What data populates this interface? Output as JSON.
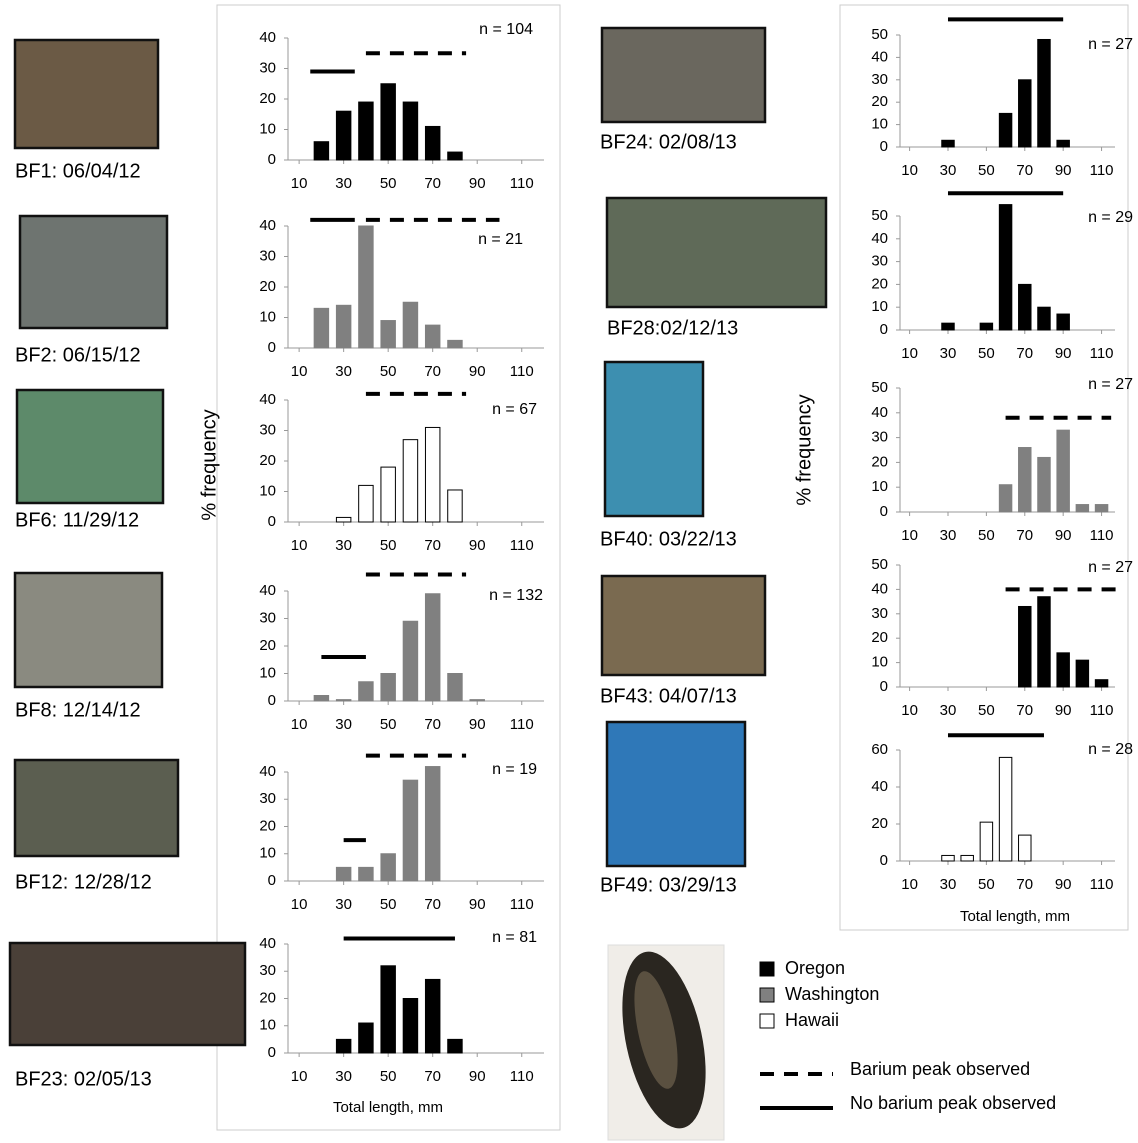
{
  "chart_data": [
    {
      "type": "bar",
      "caption": "BF1: 06/04/12",
      "annotation": "n = 104",
      "x": [
        20,
        30,
        40,
        50,
        60,
        70,
        80
      ],
      "values": [
        6,
        16,
        19,
        25,
        19,
        11,
        2.6
      ],
      "color": "#000000",
      "edgecolor": "#000000",
      "xlim": [
        5,
        120
      ],
      "xticks": [
        10,
        30,
        50,
        70,
        90,
        110
      ],
      "ylim": [
        0,
        40
      ],
      "yticks": [
        0,
        10,
        20,
        30,
        40
      ],
      "ranges": [
        {
          "style": "solid",
          "x": [
            15,
            35
          ],
          "y": 29
        },
        {
          "style": "dashed",
          "x": [
            40,
            85
          ],
          "y": 35
        }
      ]
    },
    {
      "type": "bar",
      "caption": "BF2: 06/15/12",
      "annotation": "n = 21",
      "x": [
        20,
        30,
        40,
        50,
        60,
        70,
        80
      ],
      "values": [
        13,
        14,
        40,
        9,
        15,
        7.5,
        2.5
      ],
      "color": "#808080",
      "edgecolor": "#808080",
      "xlim": [
        5,
        120
      ],
      "xticks": [
        10,
        30,
        50,
        70,
        90,
        110
      ],
      "ylim": [
        0,
        40
      ],
      "yticks": [
        0,
        10,
        20,
        30,
        40
      ],
      "ranges": [
        {
          "style": "solid",
          "x": [
            15,
            35
          ],
          "y": 42
        },
        {
          "style": "dashed",
          "x": [
            40,
            100
          ],
          "y": 42
        }
      ]
    },
    {
      "type": "bar",
      "caption": "BF6: 11/29/12",
      "annotation": "n = 67",
      "ylabel": "% frequency",
      "x": [
        30,
        40,
        50,
        60,
        70,
        80
      ],
      "values": [
        1.5,
        12,
        18,
        27,
        31,
        10.5
      ],
      "color": "#ffffff",
      "edgecolor": "#000000",
      "xlim": [
        5,
        120
      ],
      "xticks": [
        10,
        30,
        50,
        70,
        90,
        110
      ],
      "ylim": [
        0,
        40
      ],
      "yticks": [
        0,
        10,
        20,
        30,
        40
      ],
      "ranges": [
        {
          "style": "dashed",
          "x": [
            40,
            85
          ],
          "y": 42
        }
      ]
    },
    {
      "type": "bar",
      "caption": "BF8: 12/14/12",
      "annotation": "n = 132",
      "x": [
        20,
        30,
        40,
        50,
        60,
        70,
        80,
        90
      ],
      "values": [
        2,
        0.5,
        7,
        10,
        29,
        39,
        10,
        0.5
      ],
      "color": "#808080",
      "edgecolor": "#808080",
      "xlim": [
        5,
        120
      ],
      "xticks": [
        10,
        30,
        50,
        70,
        90,
        110
      ],
      "ylim": [
        0,
        40
      ],
      "yticks": [
        0,
        10,
        20,
        30,
        40
      ],
      "ranges": [
        {
          "style": "solid",
          "x": [
            20,
            40
          ],
          "y": 16
        },
        {
          "style": "dashed",
          "x": [
            40,
            85
          ],
          "y": 46
        }
      ]
    },
    {
      "type": "bar",
      "caption": "BF12: 12/28/12",
      "annotation": "n = 19",
      "x": [
        30,
        40,
        50,
        60,
        70
      ],
      "values": [
        5,
        5,
        10,
        37,
        42
      ],
      "color": "#808080",
      "edgecolor": "#808080",
      "xlim": [
        5,
        120
      ],
      "xticks": [
        10,
        30,
        50,
        70,
        90,
        110
      ],
      "ylim": [
        0,
        40
      ],
      "yticks": [
        0,
        10,
        20,
        30,
        40
      ],
      "ranges": [
        {
          "style": "solid",
          "x": [
            30,
            40
          ],
          "y": 15
        },
        {
          "style": "dashed",
          "x": [
            40,
            85
          ],
          "y": 46
        }
      ]
    },
    {
      "type": "bar",
      "caption": "BF23: 02/05/13",
      "annotation": "n = 81",
      "xlabel": "Total length, mm",
      "x": [
        30,
        40,
        50,
        60,
        70,
        80
      ],
      "values": [
        5,
        11,
        32,
        20,
        27,
        5
      ],
      "color": "#000000",
      "edgecolor": "#000000",
      "xlim": [
        5,
        120
      ],
      "xticks": [
        10,
        30,
        50,
        70,
        90,
        110
      ],
      "ylim": [
        0,
        40
      ],
      "yticks": [
        0,
        10,
        20,
        30,
        40
      ],
      "ranges": [
        {
          "style": "solid",
          "x": [
            30,
            80
          ],
          "y": 42
        }
      ]
    },
    {
      "type": "bar",
      "caption": "BF24: 02/08/13",
      "annotation": "n = 27",
      "x": [
        30,
        60,
        70,
        80,
        90
      ],
      "values": [
        3,
        15,
        30,
        48,
        3
      ],
      "color": "#000000",
      "edgecolor": "#000000",
      "xlim": [
        5,
        117
      ],
      "xticks": [
        10,
        30,
        50,
        70,
        90,
        110
      ],
      "ylim": [
        0,
        50
      ],
      "yticks": [
        0,
        10,
        20,
        30,
        40,
        50
      ],
      "ranges": [
        {
          "style": "solid",
          "x": [
            30,
            90
          ],
          "y": 57
        }
      ]
    },
    {
      "type": "bar",
      "caption": "BF28:02/12/13",
      "annotation": "n = 29",
      "x": [
        30,
        50,
        60,
        70,
        80,
        90
      ],
      "values": [
        3,
        3,
        55,
        20,
        10,
        7
      ],
      "color": "#000000",
      "edgecolor": "#000000",
      "xlim": [
        5,
        117
      ],
      "xticks": [
        10,
        30,
        50,
        70,
        90,
        110
      ],
      "ylim": [
        0,
        50
      ],
      "yticks": [
        0,
        10,
        20,
        30,
        40,
        50
      ],
      "ranges": [
        {
          "style": "solid",
          "x": [
            30,
            90
          ],
          "y": 60
        }
      ]
    },
    {
      "type": "bar",
      "caption": "BF40: 03/22/13",
      "annotation": "n = 27",
      "ylabel": "% frequency",
      "x": [
        60,
        70,
        80,
        90,
        100,
        110
      ],
      "values": [
        11,
        26,
        22,
        33,
        3,
        3
      ],
      "color": "#808080",
      "edgecolor": "#808080",
      "xlim": [
        5,
        117
      ],
      "xticks": [
        10,
        30,
        50,
        70,
        90,
        110
      ],
      "ylim": [
        0,
        50
      ],
      "yticks": [
        0,
        10,
        20,
        30,
        40,
        50
      ],
      "ranges": [
        {
          "style": "dashed",
          "x": [
            60,
            115
          ],
          "y": 38
        }
      ]
    },
    {
      "type": "bar",
      "caption": "BF43: 04/07/13",
      "annotation": "n = 27",
      "x": [
        70,
        80,
        90,
        100,
        110
      ],
      "values": [
        33,
        37,
        14,
        11,
        3
      ],
      "color": "#000000",
      "edgecolor": "#000000",
      "xlim": [
        5,
        117
      ],
      "xticks": [
        10,
        30,
        50,
        70,
        90,
        110
      ],
      "ylim": [
        0,
        50
      ],
      "yticks": [
        0,
        10,
        20,
        30,
        40,
        50
      ],
      "ranges": [
        {
          "style": "dashed",
          "x": [
            60,
            120
          ],
          "y": 40
        }
      ]
    },
    {
      "type": "bar",
      "caption": "BF49: 03/29/13",
      "annotation": "n = 28",
      "xlabel": "Total length, mm",
      "x": [
        30,
        40,
        50,
        60,
        70
      ],
      "values": [
        3,
        3,
        21,
        56,
        14
      ],
      "color": "#ffffff",
      "edgecolor": "#000000",
      "xlim": [
        5,
        117
      ],
      "xticks": [
        10,
        30,
        50,
        70,
        90,
        110
      ],
      "ylim": [
        0,
        60
      ],
      "yticks": [
        0,
        20,
        40,
        60
      ],
      "ranges": [
        {
          "style": "solid",
          "x": [
            30,
            80
          ],
          "y": 68
        }
      ]
    }
  ],
  "legend": {
    "series": [
      {
        "name": "Oregon",
        "color": "#000000"
      },
      {
        "name": "Washington",
        "color": "#808080"
      },
      {
        "name": "Hawaii",
        "color": "#ffffff"
      }
    ],
    "lines": [
      {
        "name": "Barium peak observed",
        "style": "dashed"
      },
      {
        "name": "No barium peak observed",
        "style": "solid"
      }
    ]
  }
}
